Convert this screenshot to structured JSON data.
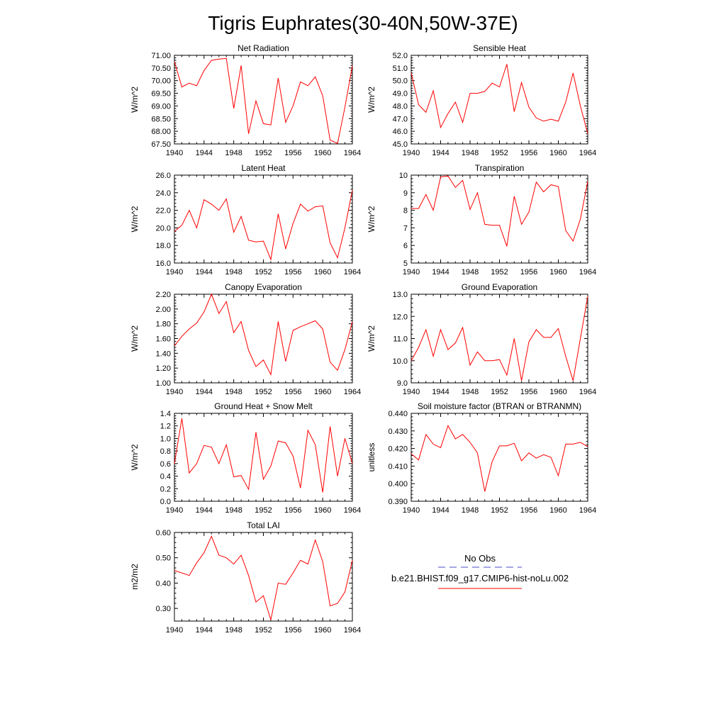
{
  "figure": {
    "title": "Tigris Euphrates(30-40N,50W-37E)"
  },
  "colors": {
    "model_line": "#ff0000",
    "obs_line": "#4b4bc8",
    "axis": "#000000"
  },
  "legend": {
    "placement": "bottom-right",
    "entries": [
      {
        "label": "No Obs",
        "style": "dashed",
        "color": "#4b4bc8"
      },
      {
        "label": "b.e21.BHIST.f09_g17.CMIP6-hist-noLu.002",
        "style": "solid",
        "color": "#ff0000"
      }
    ]
  },
  "chart_data": [
    {
      "type": "line",
      "title": "Net Radiation",
      "ylabel": "W/m^2",
      "xlabel": "",
      "xlim": [
        1940,
        1964
      ],
      "ylim": [
        67.5,
        71.0
      ],
      "xticks": [
        1940,
        1944,
        1948,
        1952,
        1956,
        1960,
        1964
      ],
      "yticks": [
        "67.50",
        "68.00",
        "68.50",
        "69.00",
        "69.50",
        "70.00",
        "70.50",
        "71.00"
      ],
      "x": [
        1940,
        1941,
        1942,
        1943,
        1944,
        1945,
        1946,
        1947,
        1948,
        1949,
        1950,
        1951,
        1952,
        1953,
        1954,
        1955,
        1956,
        1957,
        1958,
        1959,
        1960,
        1961,
        1962,
        1963,
        1964
      ],
      "series": [
        {
          "values": [
            70.75,
            69.75,
            69.9,
            69.8,
            70.4,
            70.8,
            70.85,
            70.88,
            68.9,
            70.6,
            67.9,
            69.2,
            68.3,
            68.25,
            70.1,
            68.35,
            69.0,
            69.95,
            69.8,
            70.15,
            69.4,
            67.65,
            67.52,
            68.95,
            70.6
          ]
        }
      ]
    },
    {
      "type": "line",
      "title": "Sensible Heat",
      "ylabel": "W/m^2",
      "xlabel": "",
      "xlim": [
        1940,
        1964
      ],
      "ylim": [
        45.0,
        52.0
      ],
      "xticks": [
        1940,
        1944,
        1948,
        1952,
        1956,
        1960,
        1964
      ],
      "yticks": [
        "45.0",
        "46.0",
        "47.0",
        "48.0",
        "49.0",
        "50.0",
        "51.0",
        "52.0"
      ],
      "x": [
        1940,
        1941,
        1942,
        1943,
        1944,
        1945,
        1946,
        1947,
        1948,
        1949,
        1950,
        1951,
        1952,
        1953,
        1954,
        1955,
        1956,
        1957,
        1958,
        1959,
        1960,
        1961,
        1962,
        1963,
        1964
      ],
      "series": [
        {
          "values": [
            50.6,
            48.1,
            47.5,
            49.2,
            46.3,
            47.4,
            48.3,
            46.7,
            49.0,
            49.0,
            49.15,
            49.8,
            49.5,
            51.3,
            47.55,
            49.85,
            47.9,
            47.05,
            46.8,
            46.95,
            46.8,
            48.3,
            50.6,
            48.0,
            45.8
          ]
        }
      ]
    },
    {
      "type": "line",
      "title": "Latent Heat",
      "ylabel": "W/m^2",
      "xlabel": "",
      "xlim": [
        1940,
        1964
      ],
      "ylim": [
        16.0,
        26.0
      ],
      "xticks": [
        1940,
        1944,
        1948,
        1952,
        1956,
        1960,
        1964
      ],
      "yticks": [
        "16.0",
        "18.0",
        "20.0",
        "22.0",
        "24.0",
        "26.0"
      ],
      "x": [
        1940,
        1941,
        1942,
        1943,
        1944,
        1945,
        1946,
        1947,
        1948,
        1949,
        1950,
        1951,
        1952,
        1953,
        1954,
        1955,
        1956,
        1957,
        1958,
        1959,
        1960,
        1961,
        1962,
        1963,
        1964
      ],
      "series": [
        {
          "values": [
            19.6,
            20.3,
            22.0,
            20.0,
            23.2,
            22.7,
            22.0,
            23.3,
            19.5,
            21.3,
            18.6,
            18.4,
            18.5,
            16.4,
            21.6,
            17.6,
            20.5,
            22.7,
            21.9,
            22.4,
            22.5,
            18.3,
            16.6,
            20.0,
            24.3
          ]
        }
      ]
    },
    {
      "type": "line",
      "title": "Transpiration",
      "ylabel": "W/m^2",
      "xlabel": "",
      "xlim": [
        1940,
        1964
      ],
      "ylim": [
        5,
        10
      ],
      "xticks": [
        1940,
        1944,
        1948,
        1952,
        1956,
        1960,
        1964
      ],
      "yticks": [
        "5",
        "6",
        "7",
        "8",
        "9",
        "10"
      ],
      "x": [
        1940,
        1941,
        1942,
        1943,
        1944,
        1945,
        1946,
        1947,
        1948,
        1949,
        1950,
        1951,
        1952,
        1953,
        1954,
        1955,
        1956,
        1957,
        1958,
        1959,
        1960,
        1961,
        1962,
        1963,
        1964
      ],
      "series": [
        {
          "values": [
            8.1,
            8.1,
            8.9,
            8.0,
            9.9,
            9.95,
            9.3,
            9.7,
            8.05,
            9.0,
            7.2,
            7.15,
            7.15,
            5.95,
            8.8,
            7.2,
            7.9,
            9.6,
            9.05,
            9.45,
            9.35,
            6.85,
            6.25,
            7.5,
            9.65
          ]
        }
      ]
    },
    {
      "type": "line",
      "title": "Canopy Evaporation",
      "ylabel": "W/m^2",
      "xlabel": "",
      "xlim": [
        1940,
        1964
      ],
      "ylim": [
        1.0,
        2.2
      ],
      "xticks": [
        1940,
        1944,
        1948,
        1952,
        1956,
        1960,
        1964
      ],
      "yticks": [
        "1.00",
        "1.20",
        "1.40",
        "1.60",
        "1.80",
        "2.00",
        "2.20"
      ],
      "x": [
        1940,
        1941,
        1942,
        1943,
        1944,
        1945,
        1946,
        1947,
        1948,
        1949,
        1950,
        1951,
        1952,
        1953,
        1954,
        1955,
        1956,
        1957,
        1958,
        1959,
        1960,
        1961,
        1962,
        1963,
        1964
      ],
      "series": [
        {
          "values": [
            1.5,
            1.63,
            1.73,
            1.81,
            1.96,
            2.2,
            1.94,
            2.1,
            1.68,
            1.83,
            1.44,
            1.22,
            1.31,
            1.11,
            1.83,
            1.29,
            1.71,
            1.76,
            1.8,
            1.84,
            1.73,
            1.28,
            1.17,
            1.45,
            1.83
          ]
        }
      ]
    },
    {
      "type": "line",
      "title": "Ground Evaporation",
      "ylabel": "W/m^2",
      "xlabel": "",
      "xlim": [
        1940,
        1964
      ],
      "ylim": [
        9.0,
        13.0
      ],
      "xticks": [
        1940,
        1944,
        1948,
        1952,
        1956,
        1960,
        1964
      ],
      "yticks": [
        "9.0",
        "10.0",
        "11.0",
        "12.0",
        "13.0"
      ],
      "x": [
        1940,
        1941,
        1942,
        1943,
        1944,
        1945,
        1946,
        1947,
        1948,
        1949,
        1950,
        1951,
        1952,
        1953,
        1954,
        1955,
        1956,
        1957,
        1958,
        1959,
        1960,
        1961,
        1962,
        1963,
        1964
      ],
      "series": [
        {
          "values": [
            10.0,
            10.6,
            11.4,
            10.2,
            11.4,
            10.5,
            10.8,
            11.5,
            9.8,
            10.4,
            10.0,
            10.0,
            10.05,
            9.35,
            11.0,
            9.1,
            10.85,
            11.4,
            11.05,
            11.05,
            11.45,
            10.2,
            9.1,
            11.0,
            12.9
          ]
        }
      ]
    },
    {
      "type": "line",
      "title": "Ground Heat + Snow Melt",
      "ylabel": "W/m^2",
      "xlabel": "",
      "xlim": [
        1940,
        1964
      ],
      "ylim": [
        0.0,
        1.4
      ],
      "xticks": [
        1940,
        1944,
        1948,
        1952,
        1956,
        1960,
        1964
      ],
      "yticks": [
        "0.0",
        "0.2",
        "0.4",
        "0.6",
        "0.8",
        "1.0",
        "1.2",
        "1.4"
      ],
      "x": [
        1940,
        1941,
        1942,
        1943,
        1944,
        1945,
        1946,
        1947,
        1948,
        1949,
        1950,
        1951,
        1952,
        1953,
        1954,
        1955,
        1956,
        1957,
        1958,
        1959,
        1960,
        1961,
        1962,
        1963,
        1964
      ],
      "series": [
        {
          "values": [
            0.6,
            1.32,
            0.45,
            0.6,
            0.89,
            0.86,
            0.6,
            0.9,
            0.39,
            0.41,
            0.19,
            1.1,
            0.35,
            0.56,
            0.96,
            0.93,
            0.72,
            0.21,
            1.13,
            0.9,
            0.14,
            1.19,
            0.4,
            1.0,
            0.6
          ]
        }
      ]
    },
    {
      "type": "line",
      "title": "Soil moisture factor (BTRAN or BTRANMN)",
      "ylabel": "unitless",
      "xlabel": "",
      "xlim": [
        1940,
        1964
      ],
      "ylim": [
        0.39,
        0.44
      ],
      "xticks": [
        1940,
        1944,
        1948,
        1952,
        1956,
        1960,
        1964
      ],
      "yticks": [
        "0.390",
        "0.400",
        "0.410",
        "0.420",
        "0.430",
        "0.440"
      ],
      "x": [
        1940,
        1941,
        1942,
        1943,
        1944,
        1945,
        1946,
        1947,
        1948,
        1949,
        1950,
        1951,
        1952,
        1953,
        1954,
        1955,
        1956,
        1957,
        1958,
        1959,
        1960,
        1961,
        1962,
        1963,
        1964
      ],
      "series": [
        {
          "values": [
            0.417,
            0.4135,
            0.428,
            0.4225,
            0.4205,
            0.433,
            0.4255,
            0.428,
            0.4235,
            0.4175,
            0.3955,
            0.4125,
            0.4215,
            0.4215,
            0.423,
            0.413,
            0.4175,
            0.4145,
            0.4165,
            0.415,
            0.4045,
            0.4225,
            0.4225,
            0.4235,
            0.421
          ]
        }
      ]
    },
    {
      "type": "line",
      "title": "Total LAI",
      "ylabel": "m2/m2",
      "xlabel": "",
      "xlim": [
        1940,
        1964
      ],
      "ylim": [
        0.25,
        0.6
      ],
      "xticks": [
        1940,
        1944,
        1948,
        1952,
        1956,
        1960,
        1964
      ],
      "yticks": [
        "0.30",
        "0.40",
        "0.50",
        "0.60"
      ],
      "x": [
        1940,
        1941,
        1942,
        1943,
        1944,
        1945,
        1946,
        1947,
        1948,
        1949,
        1950,
        1951,
        1952,
        1953,
        1954,
        1955,
        1956,
        1957,
        1958,
        1959,
        1960,
        1961,
        1962,
        1963,
        1964
      ],
      "series": [
        {
          "values": [
            0.45,
            0.44,
            0.43,
            0.48,
            0.52,
            0.585,
            0.51,
            0.5,
            0.475,
            0.51,
            0.43,
            0.325,
            0.35,
            0.255,
            0.4,
            0.395,
            0.44,
            0.49,
            0.475,
            0.57,
            0.485,
            0.31,
            0.32,
            0.365,
            0.49
          ]
        }
      ]
    }
  ]
}
